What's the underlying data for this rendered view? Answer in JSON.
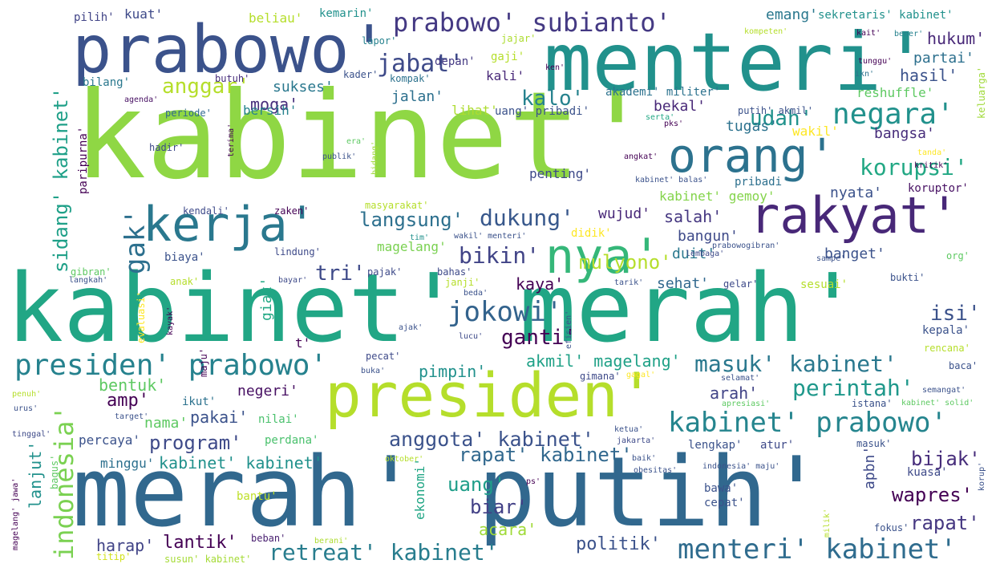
{
  "words": [
    {
      "text": "kabinet'",
      "color": "#8fd744"
    },
    {
      "text": "kabinet' merah'",
      "color": "#21a685"
    },
    {
      "text": "merah' putih'",
      "color": "#31688e"
    },
    {
      "text": "menteri'",
      "color": "#21918c"
    },
    {
      "text": "prabowo'",
      "color": "#3b528b"
    },
    {
      "text": "presiden'",
      "color": "#b5de2b"
    },
    {
      "text": "rakyat'",
      "color": "#482878"
    },
    {
      "text": "orang'",
      "color": "#2c728e"
    },
    {
      "text": "kerja'",
      "color": "#2a788e"
    },
    {
      "text": "nya'",
      "color": "#35b779"
    },
    {
      "text": "prabowo' subianto'",
      "color": "#443983"
    },
    {
      "text": "presiden' prabowo'",
      "color": "#26828e"
    },
    {
      "text": "kabinet' prabowo'",
      "color": "#25858e"
    },
    {
      "text": "menteri' kabinet'",
      "color": "#2f6c8e"
    },
    {
      "text": "masuk' kabinet'",
      "color": "#2a788e"
    },
    {
      "text": "negara'",
      "color": "#21918c"
    },
    {
      "text": "jokowi'",
      "color": "#33638d"
    },
    {
      "text": "retreat' kabinet'",
      "color": "#287d8e"
    },
    {
      "text": "gak'",
      "color": "#2d708e"
    },
    {
      "text": "korupsi'",
      "color": "#22a884"
    },
    {
      "text": "perintah'",
      "color": "#1f988b"
    },
    {
      "text": "jabat'",
      "color": "#3e4a89"
    },
    {
      "text": "dukung'",
      "color": "#38588c"
    },
    {
      "text": "anggota' kabinet'",
      "color": "#3b528b"
    },
    {
      "text": "bikin'",
      "color": "#414487"
    },
    {
      "text": "langsung'",
      "color": "#2d708e"
    },
    {
      "text": "indonesia'",
      "color": "#7ad151"
    },
    {
      "text": "sidang' kabinet'",
      "color": "#1fa088"
    },
    {
      "text": "ganti'",
      "color": "#440154"
    },
    {
      "text": "program'",
      "color": "#3e4a89"
    },
    {
      "text": "rapat' kabinet'",
      "color": "#31688e"
    },
    {
      "text": "kalo'",
      "color": "#26828e"
    },
    {
      "text": "anggar'",
      "color": "#b5de2b"
    },
    {
      "text": "udah'",
      "color": "#20928c"
    },
    {
      "text": "tri'",
      "color": "#3e4a89"
    },
    {
      "text": "isi'",
      "color": "#3b528b"
    },
    {
      "text": "arah'",
      "color": "#414487"
    },
    {
      "text": "mulyono'",
      "color": "#b5de2b"
    },
    {
      "text": "uang'",
      "color": "#1f9e89"
    },
    {
      "text": "biar'",
      "color": "#424086"
    },
    {
      "text": "bijak'",
      "color": "#472d7b"
    },
    {
      "text": "wapres'",
      "color": "#440154"
    },
    {
      "text": "rapat'",
      "color": "#453781"
    },
    {
      "text": "lantik'",
      "color": "#440154"
    },
    {
      "text": "politik'",
      "color": "#3b528b"
    },
    {
      "text": "acara'",
      "color": "#a0da39"
    },
    {
      "text": "harap'",
      "color": "#414487"
    },
    {
      "text": "pimpin'",
      "color": "#21918c"
    },
    {
      "text": "pakai'",
      "color": "#3b528b"
    },
    {
      "text": "negeri'",
      "color": "#471063"
    },
    {
      "text": "akmil' magelang'",
      "color": "#1fa187"
    },
    {
      "text": "bentuk'",
      "color": "#5ec962"
    },
    {
      "text": "amp'",
      "color": "#440154"
    },
    {
      "text": "nama'",
      "color": "#5ec962"
    },
    {
      "text": "kabinet' kabinet'",
      "color": "#21918c"
    },
    {
      "text": "minggu'",
      "color": "#2d708e"
    },
    {
      "text": "percaya'",
      "color": "#3b528b"
    },
    {
      "text": "perdana'",
      "color": "#4ac16d"
    },
    {
      "text": "nilai'",
      "color": "#4ac16d"
    },
    {
      "text": "ikut'",
      "color": "#2c728e"
    },
    {
      "text": "bantu'",
      "color": "#bddf26"
    },
    {
      "text": "beban'",
      "color": "#481f70"
    },
    {
      "text": "berani'",
      "color": "#addc30"
    },
    {
      "text": "titip'",
      "color": "#d2e21b"
    },
    {
      "text": "susun' kabinet'",
      "color": "#a5db36"
    },
    {
      "text": "salah'",
      "color": "#453781"
    },
    {
      "text": "bangun'",
      "color": "#3e4a89"
    },
    {
      "text": "wujud'",
      "color": "#482878"
    },
    {
      "text": "kaya'",
      "color": "#440154"
    },
    {
      "text": "sehat'",
      "color": "#31688e"
    },
    {
      "text": "duit'",
      "color": "#2a788e"
    },
    {
      "text": "banget'",
      "color": "#3b528b"
    },
    {
      "text": "bangsa'",
      "color": "#472d7b"
    },
    {
      "text": "nyata'",
      "color": "#3b528b"
    },
    {
      "text": "kabinet' gemoy'",
      "color": "#84d44b"
    },
    {
      "text": "pribadi'",
      "color": "#2d708e"
    },
    {
      "text": "koruptor'",
      "color": "#471063"
    },
    {
      "text": "penting'",
      "color": "#3e4a89"
    },
    {
      "text": "tugas'",
      "color": "#2c728e"
    },
    {
      "text": "bekal'",
      "color": "#482878"
    },
    {
      "text": "hasil'",
      "color": "#3b528b"
    },
    {
      "text": "partai'",
      "color": "#2d708e"
    },
    {
      "text": "hukum'",
      "color": "#482878"
    },
    {
      "text": "emang'",
      "color": "#2a788e"
    },
    {
      "text": "sekretaris' kabinet'",
      "color": "#21918c"
    },
    {
      "text": "moga'",
      "color": "#472d7b"
    },
    {
      "text": "sukses'",
      "color": "#2a788e"
    },
    {
      "text": "jalan'",
      "color": "#2d708e"
    },
    {
      "text": "bersih'",
      "color": "#26828e"
    },
    {
      "text": "lihat'",
      "color": "#addc30"
    },
    {
      "text": "uang' pribadi'",
      "color": "#3b528b"
    },
    {
      "text": "akademi' militer'",
      "color": "#2c728e"
    },
    {
      "text": "reshuffle'",
      "color": "#5ec962"
    },
    {
      "text": "putih' akmil'",
      "color": "#3b528b"
    },
    {
      "text": "wakil'",
      "color": "#fde725"
    },
    {
      "text": "kuat'",
      "color": "#3e4a89"
    },
    {
      "text": "beliau'",
      "color": "#b5de2b"
    },
    {
      "text": "kemarin'",
      "color": "#21918c"
    },
    {
      "text": "pilih'",
      "color": "#414487"
    },
    {
      "text": "depan'",
      "color": "#443983"
    },
    {
      "text": "jajar'",
      "color": "#addc30"
    },
    {
      "text": "gaji'",
      "color": "#b5de2b"
    },
    {
      "text": "kali'",
      "color": "#482878"
    },
    {
      "text": "bilang'",
      "color": "#2a788e"
    },
    {
      "text": "butuh'",
      "color": "#472d7b"
    },
    {
      "text": "kader'",
      "color": "#3b528b"
    },
    {
      "text": "kompak'",
      "color": "#2c728e"
    },
    {
      "text": "lapor'",
      "color": "#26828e"
    },
    {
      "text": "ken'",
      "color": "#440154"
    },
    {
      "text": "kompeten'",
      "color": "#b5de2b"
    },
    {
      "text": "kait'",
      "color": "#440154"
    },
    {
      "text": "bener'",
      "color": "#26828e"
    },
    {
      "text": "tunggu'",
      "color": "#440154"
    },
    {
      "text": "ikn'",
      "color": "#2c728e"
    },
    {
      "text": "keluarga'",
      "color": "#a0da39"
    },
    {
      "text": "agenda'",
      "color": "#471063"
    },
    {
      "text": "periode'",
      "color": "#31688e"
    },
    {
      "text": "serta'",
      "color": "#22a884"
    },
    {
      "text": "pks'",
      "color": "#440154"
    },
    {
      "text": "hadir'",
      "color": "#3e4a89"
    },
    {
      "text": "terima'",
      "color": "#440154"
    },
    {
      "text": "era'",
      "color": "#5ec962"
    },
    {
      "text": "publik'",
      "color": "#3b528b"
    },
    {
      "text": "bidang'",
      "color": "#a0da39"
    },
    {
      "text": "angkat'",
      "color": "#440154"
    },
    {
      "text": "tanda'",
      "color": "#fde725"
    },
    {
      "text": "kritik'",
      "color": "#440154"
    },
    {
      "text": "kabinet' balas'",
      "color": "#3b528b"
    },
    {
      "text": "paripurna'",
      "color": "#440154"
    },
    {
      "text": "kendali'",
      "color": "#3e4a89"
    },
    {
      "text": "zaken'",
      "color": "#440154"
    },
    {
      "text": "masyarakat'",
      "color": "#b5de2b"
    },
    {
      "text": "didik'",
      "color": "#fde725"
    },
    {
      "text": "magelang'",
      "color": "#7ad151"
    },
    {
      "text": "tim'",
      "color": "#21918c"
    },
    {
      "text": "wakil' menteri'",
      "color": "#3b528b"
    },
    {
      "text": "lembaga'",
      "color": "#3e4a89"
    },
    {
      "text": "prabowogibran'",
      "color": "#3b528b"
    },
    {
      "text": "sampe'",
      "color": "#3b528b"
    },
    {
      "text": "org'",
      "color": "#5ec962"
    },
    {
      "text": "lindung'",
      "color": "#3e4a89"
    },
    {
      "text": "biaya'",
      "color": "#3b528b"
    },
    {
      "text": "pajak'",
      "color": "#3e4a89"
    },
    {
      "text": "gibran'",
      "color": "#5ec962"
    },
    {
      "text": "langkah'",
      "color": "#3b528b"
    },
    {
      "text": "anak'",
      "color": "#b5de2b"
    },
    {
      "text": "bayar'",
      "color": "#3e4a89"
    },
    {
      "text": "bahas'",
      "color": "#3e4a89"
    },
    {
      "text": "janji'",
      "color": "#b5de2b"
    },
    {
      "text": "tarik'",
      "color": "#3b528b"
    },
    {
      "text": "gelar'",
      "color": "#3e4a89"
    },
    {
      "text": "sesuai'",
      "color": "#b5de2b"
    },
    {
      "text": "bukti'",
      "color": "#3b528b"
    },
    {
      "text": "beda'",
      "color": "#3b528b"
    },
    {
      "text": "evaluasi'",
      "color": "#fde725"
    },
    {
      "text": "kayak'",
      "color": "#440154"
    },
    {
      "text": "ajak'",
      "color": "#3b528b"
    },
    {
      "text": "lucu'",
      "color": "#3e4a89"
    },
    {
      "text": "efisien'",
      "color": "#3b528b"
    },
    {
      "text": "giat'",
      "color": "#22a884"
    },
    {
      "text": "kepala'",
      "color": "#3b528b"
    },
    {
      "text": "rencana'",
      "color": "#b5de2b"
    },
    {
      "text": "t'",
      "color": "#440154"
    },
    {
      "text": "pecat'",
      "color": "#3e4a89"
    },
    {
      "text": "buka'",
      "color": "#3b528b"
    },
    {
      "text": "gimana'",
      "color": "#3e4a89"
    },
    {
      "text": "gagal'",
      "color": "#fde725"
    },
    {
      "text": "selamat'",
      "color": "#3b528b"
    },
    {
      "text": "baca'",
      "color": "#3b528b"
    },
    {
      "text": "maju'",
      "color": "#440154"
    },
    {
      "text": "penuh'",
      "color": "#b5de2b"
    },
    {
      "text": "urus'",
      "color": "#3b528b"
    },
    {
      "text": "semangat'",
      "color": "#3b528b"
    },
    {
      "text": "apresiasi'",
      "color": "#5ec962"
    },
    {
      "text": "kabinet' solid'",
      "color": "#5ec962"
    },
    {
      "text": "istana'",
      "color": "#3b528b"
    },
    {
      "text": "target'",
      "color": "#3b528b"
    },
    {
      "text": "tinggal'",
      "color": "#3e4a89"
    },
    {
      "text": "ketua'",
      "color": "#3b528b"
    },
    {
      "text": "jakarta'",
      "color": "#3e4a89"
    },
    {
      "text": "lengkap'",
      "color": "#3b528b"
    },
    {
      "text": "atur'",
      "color": "#3e4a89"
    },
    {
      "text": "masuk'",
      "color": "#3b528b"
    },
    {
      "text": "oktober'",
      "color": "#b5de2b"
    },
    {
      "text": "baik'",
      "color": "#3b528b"
    },
    {
      "text": "obesitas'",
      "color": "#3b528b"
    },
    {
      "text": "indonesia' maju'",
      "color": "#3b528b"
    },
    {
      "text": "kuasa'",
      "color": "#3e4a89"
    },
    {
      "text": "korup'",
      "color": "#3b528b"
    },
    {
      "text": "apbn'",
      "color": "#3e4a89"
    },
    {
      "text": "ekonomi'",
      "color": "#21a685"
    },
    {
      "text": "bagus'",
      "color": "#5ec962"
    },
    {
      "text": "lanjut'",
      "color": "#21918c"
    },
    {
      "text": "magelang' jawa'",
      "color": "#440154"
    },
    {
      "text": "ps'",
      "color": "#440154"
    },
    {
      "text": "bawa'",
      "color": "#3b528b"
    },
    {
      "text": "cepat'",
      "color": "#3b528b"
    },
    {
      "text": "milik'",
      "color": "#b5de2b"
    },
    {
      "text": "fokus'",
      "color": "#3b528b"
    }
  ]
}
